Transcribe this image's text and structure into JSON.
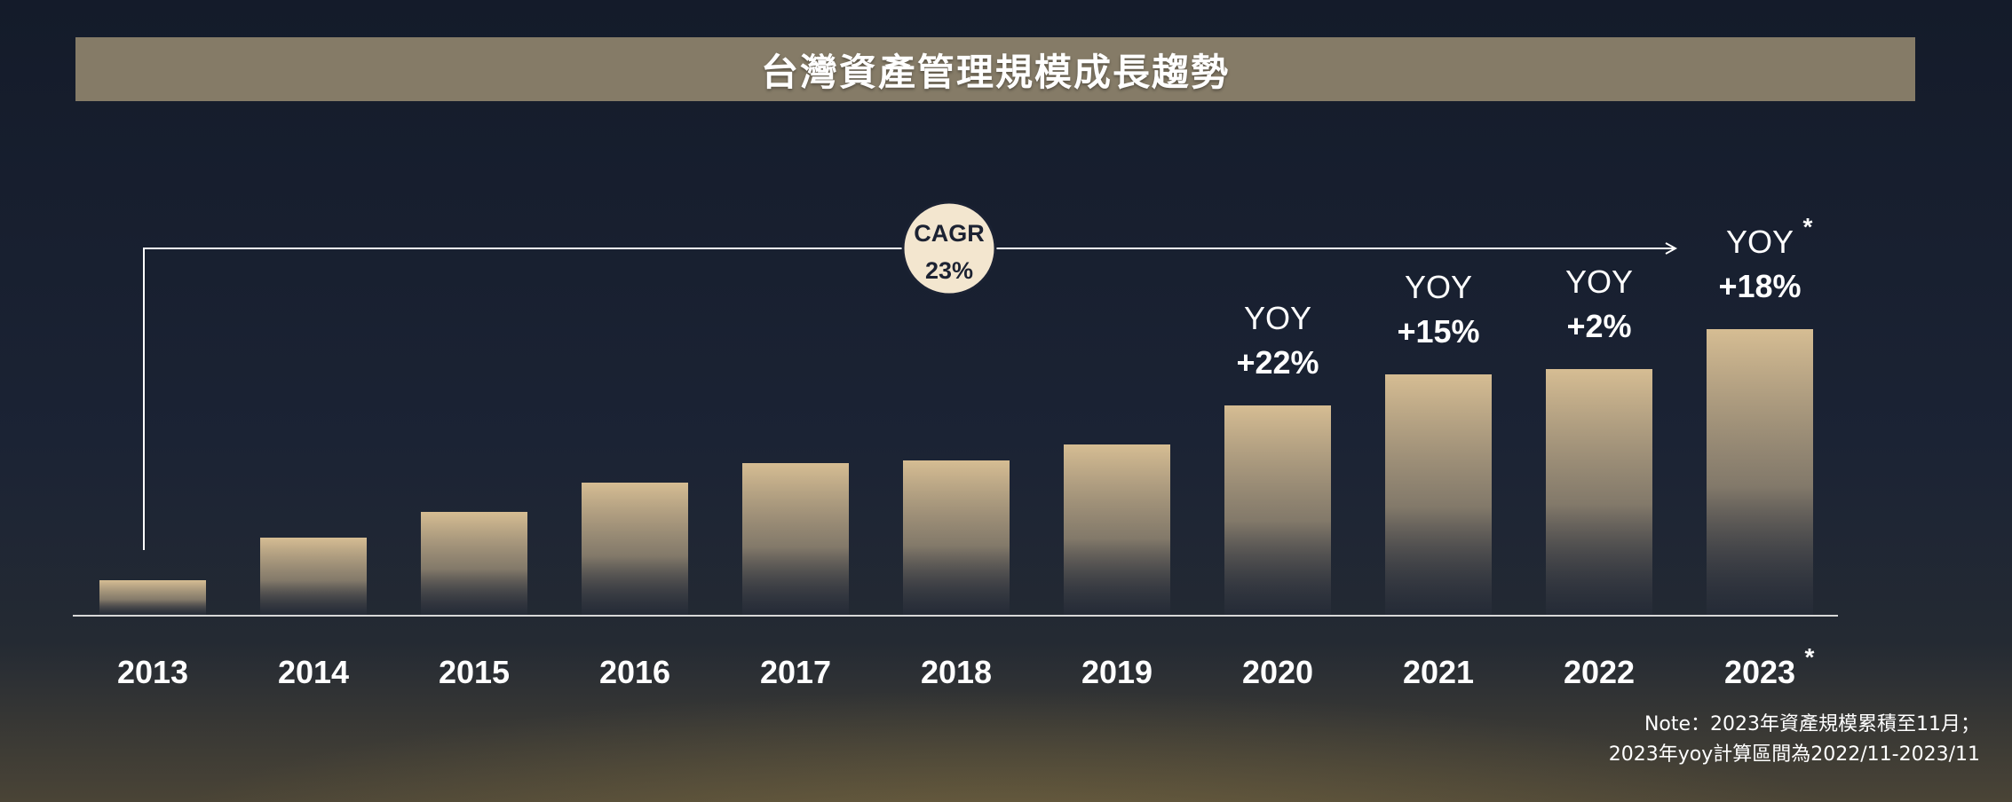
{
  "title": "台灣資產管理規模成長趨勢",
  "cagr": {
    "line1": "CAGR",
    "line2": "23%"
  },
  "note": {
    "line1": "Note：2023年資產規模累積至11月；",
    "line2": "2023年yoy計算區間為2022/11-2023/11"
  },
  "colors": {
    "bar_top": "#d6bd93",
    "accent": "#857b67",
    "badge": "#f3e6cf"
  },
  "chart_data": {
    "type": "bar",
    "title": "台灣資產管理規模成長趨勢",
    "xlabel": "",
    "ylabel": "",
    "categories": [
      "2013",
      "2014",
      "2015",
      "2016",
      "2017",
      "2018",
      "2019",
      "2020",
      "2021",
      "2022",
      "2023"
    ],
    "category_markers": [
      "",
      "",
      "",
      "",
      "",
      "",
      "",
      "",
      "",
      "",
      "*"
    ],
    "values": [
      40,
      88,
      117,
      150,
      172,
      175,
      193,
      237,
      272,
      278,
      323
    ],
    "annotations": [
      {
        "category": "2020",
        "line1": "YOY",
        "line2": "+22%",
        "marker": ""
      },
      {
        "category": "2021",
        "line1": "YOY",
        "line2": "+15%",
        "marker": ""
      },
      {
        "category": "2022",
        "line1": "YOY",
        "line2": "+2%",
        "marker": ""
      },
      {
        "category": "2023",
        "line1": "YOY",
        "line2": "+18%",
        "marker": "*"
      }
    ],
    "ylim": [
      0,
      330
    ],
    "grid": false,
    "legend": "none"
  }
}
